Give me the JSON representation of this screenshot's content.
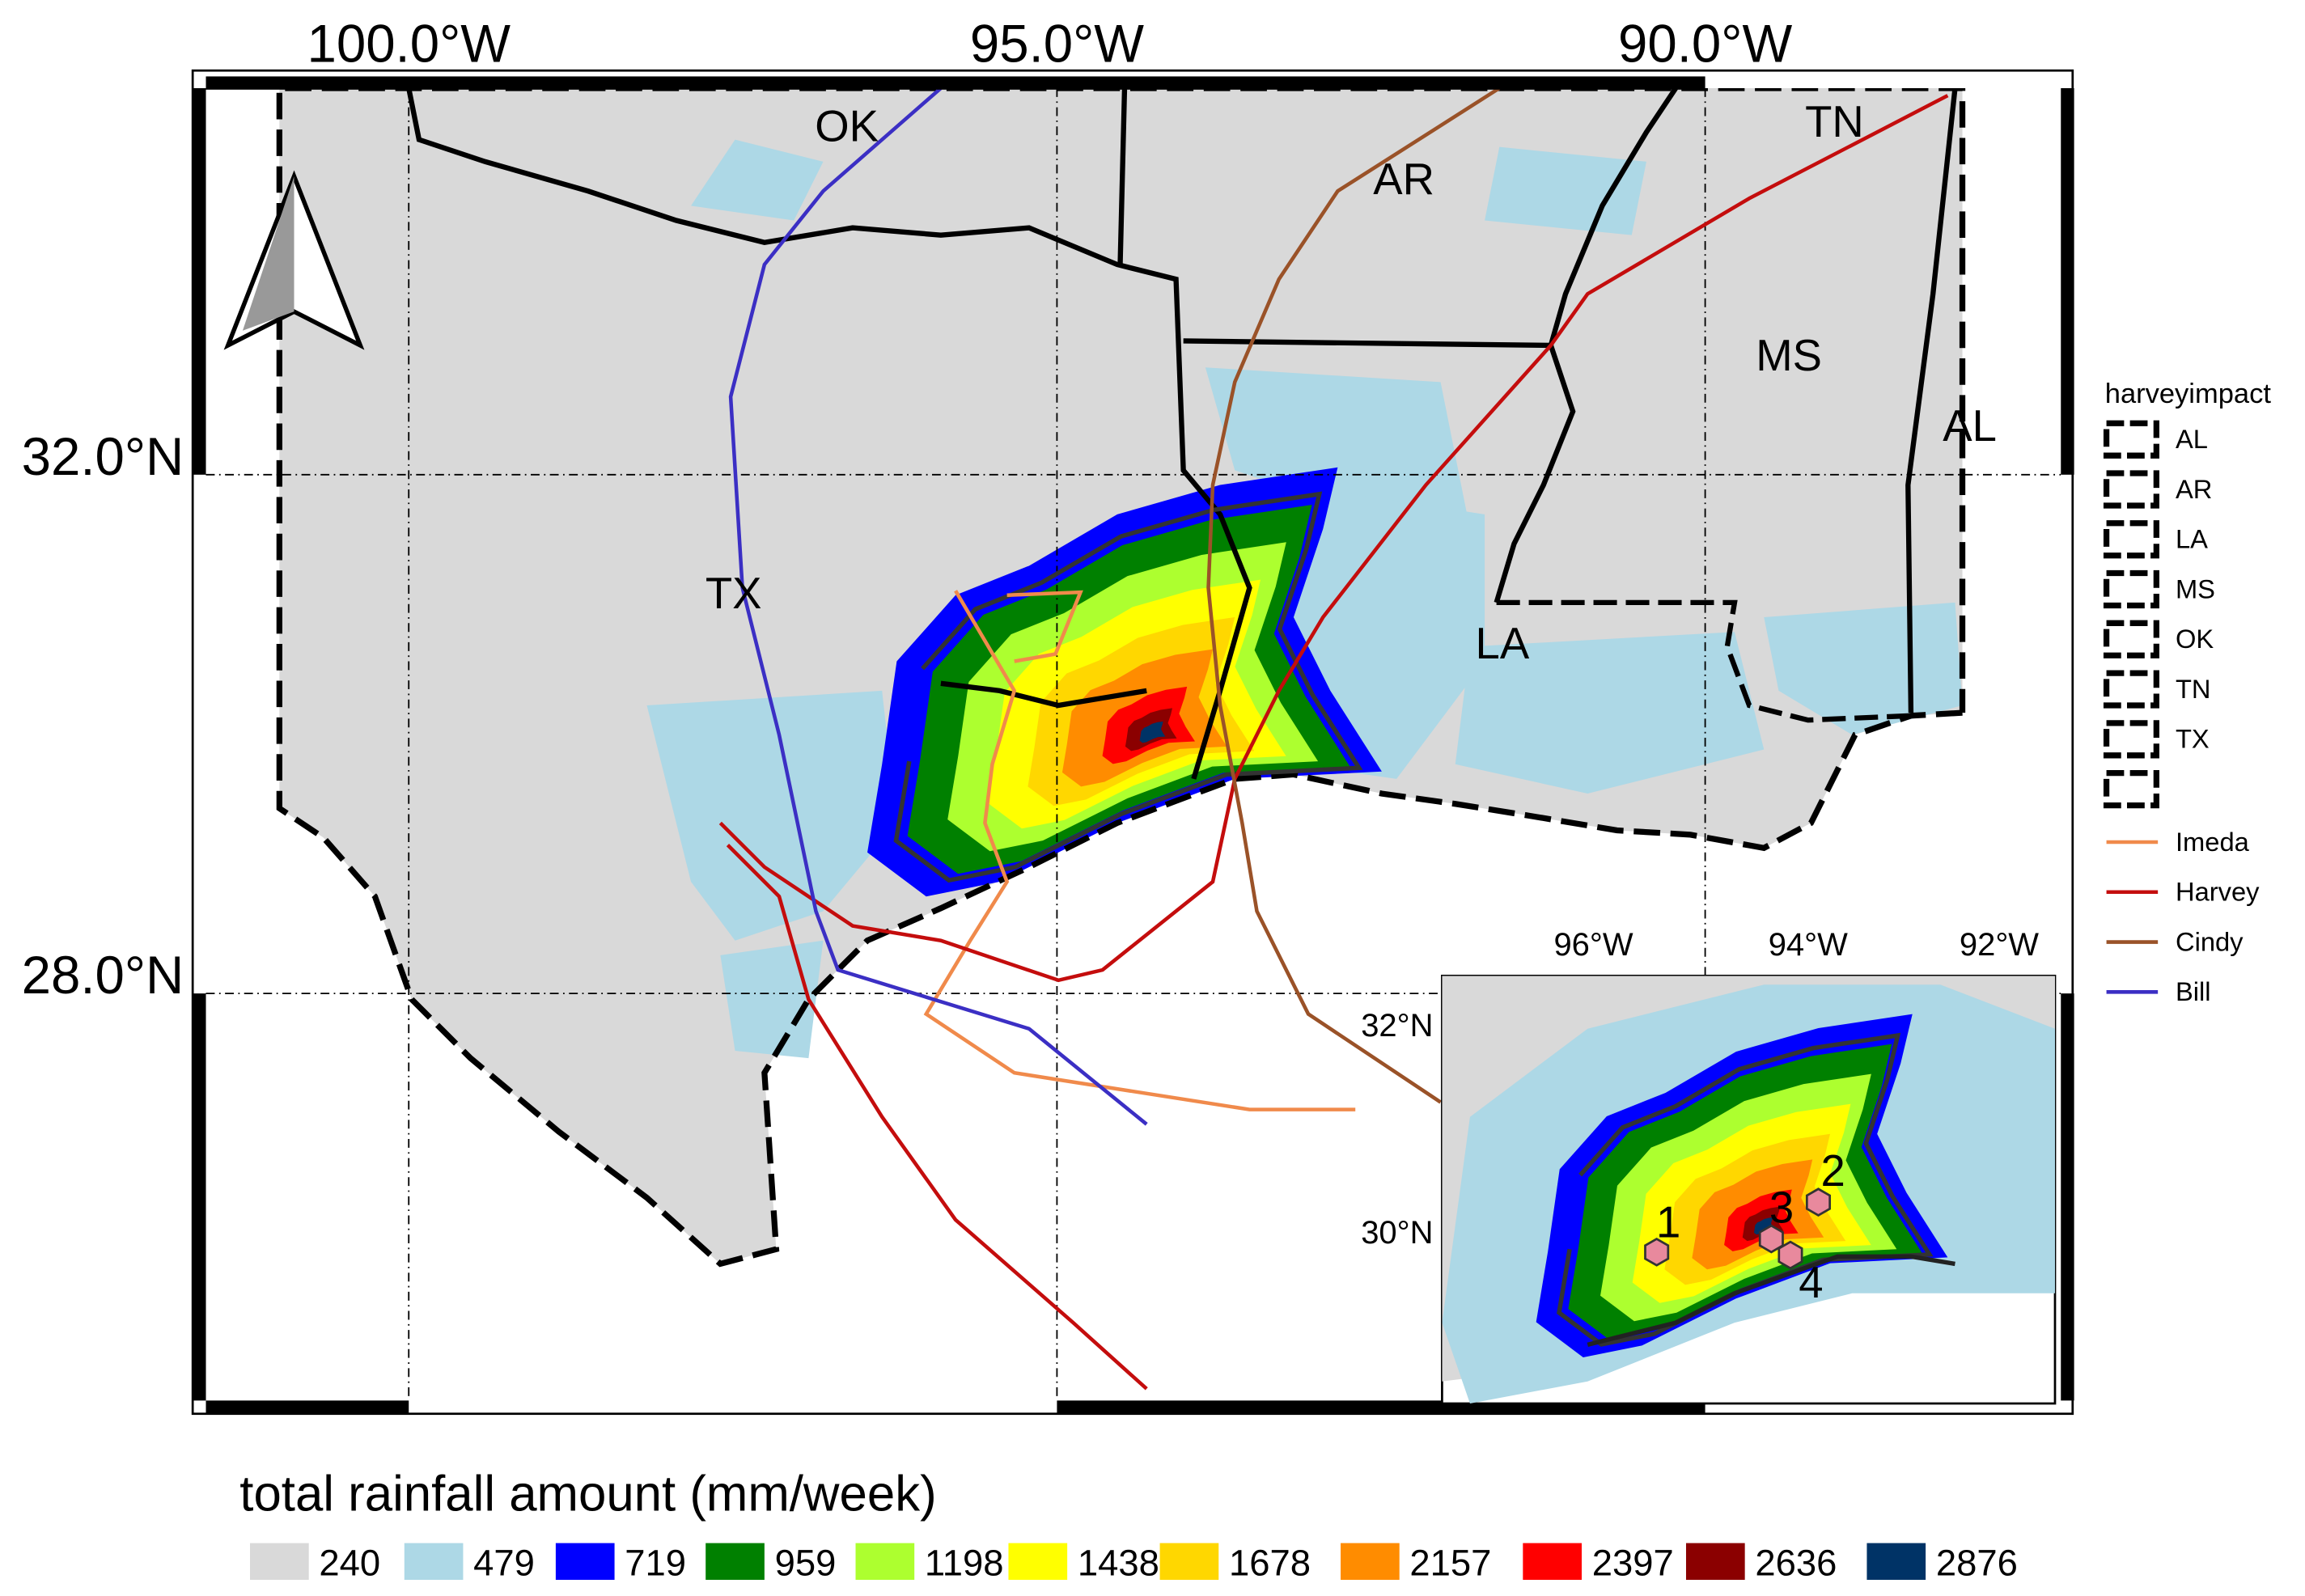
{
  "map": {
    "lon_labels": [
      "100.0°W",
      "95.0°W",
      "90.0°W"
    ],
    "lat_labels": [
      "32.0°N",
      "28.0°N"
    ],
    "state_labels": [
      "OK",
      "AR",
      "TN",
      "MS",
      "AL",
      "TX",
      "LA"
    ],
    "legend": {
      "title": "harveyimpact",
      "states": [
        "AL",
        "AR",
        "LA",
        "MS",
        "OK",
        "TN",
        "TX"
      ],
      "tracks": [
        {
          "name": "Imeda",
          "color": "#f08a4b"
        },
        {
          "name": "Harvey",
          "color": "#c40d0d"
        },
        {
          "name": "Cindy",
          "color": "#9a5228"
        },
        {
          "name": "Bill",
          "color": "#3b2fc4"
        }
      ]
    },
    "inset": {
      "lon_labels": [
        "96°W",
        "94°W",
        "92°W"
      ],
      "lat_labels": [
        "32°N",
        "30°N"
      ],
      "sites": [
        "1",
        "2",
        "3",
        "4"
      ]
    },
    "colorbar": {
      "title": "total rainfall amount (mm/week)",
      "levels": [
        {
          "value": 240,
          "color": "#d9d9d9"
        },
        {
          "value": 479,
          "color": "#add8e6"
        },
        {
          "value": 719,
          "color": "#0000ff"
        },
        {
          "value": 959,
          "color": "#008000"
        },
        {
          "value": 1198,
          "color": "#adff2f"
        },
        {
          "value": 1438,
          "color": "#ffff00"
        },
        {
          "value": 1678,
          "color": "#ffd700"
        },
        {
          "value": 2157,
          "color": "#ff8c00"
        },
        {
          "value": 2397,
          "color": "#ff0000"
        },
        {
          "value": 2636,
          "color": "#8b0000"
        },
        {
          "value": 2876,
          "color": "#003366"
        }
      ]
    }
  }
}
